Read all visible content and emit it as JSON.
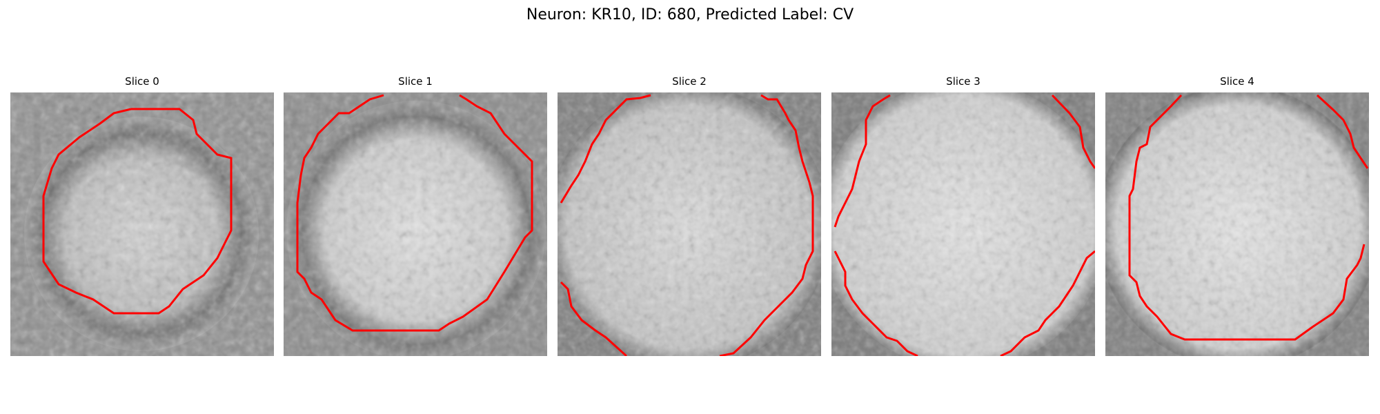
{
  "figure": {
    "title": "Neuron: KR10, ID: 680, Predicted Label: CV"
  },
  "colors": {
    "contour": "#ff0000",
    "background": "#ffffff"
  },
  "panels": [
    {
      "title": "Slice 0"
    },
    {
      "title": "Slice 1"
    },
    {
      "title": "Slice 2"
    },
    {
      "title": "Slice 3"
    },
    {
      "title": "Slice 4"
    }
  ]
}
